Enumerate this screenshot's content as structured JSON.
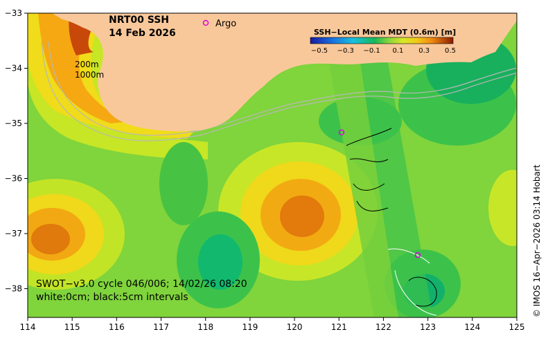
{
  "title": {
    "product": "NRT00 SSH",
    "date": "14 Feb 2026"
  },
  "legend": {
    "argo_label": "Argo",
    "argo_color": "#e000e0"
  },
  "colorbar": {
    "title": "SSH−Local Mean MDT (0.6m) [m]",
    "ticks": [
      "−0.5",
      "−0.3",
      "−0.1",
      "0.1",
      "0.3",
      "0.5"
    ],
    "colors": [
      "#1a1aa0",
      "#1a6ee0",
      "#19c0e0",
      "#16b85a",
      "#5cd63a",
      "#c8e828",
      "#f2d818",
      "#f5a010",
      "#e06a08",
      "#c03a04",
      "#8a1c02"
    ]
  },
  "isobaths": [
    "200m",
    "1000m"
  ],
  "swot_note": {
    "line1": "SWOT−v3.0 cycle 046/006; 14/02/26 08:20",
    "line2": "white:0cm; black:5cm intervals"
  },
  "credit": "© IMOS 16−Apr−2026 03:14 Hobart",
  "axes": {
    "lon_ticks": [
      "114",
      "115",
      "116",
      "117",
      "118",
      "119",
      "120",
      "121",
      "122",
      "123",
      "124",
      "125"
    ],
    "lat_ticks": [
      "−33",
      "−34",
      "−35",
      "−36",
      "−37",
      "−38"
    ]
  },
  "colors": {
    "land": "#f9c89a",
    "ocean_base": "#7ed43c"
  }
}
